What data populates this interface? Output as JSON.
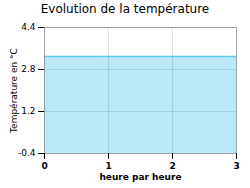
{
  "chart_data": {
    "type": "area",
    "title": "Evolution de la température",
    "xlabel": "heure par heure",
    "ylabel": "Température en °C",
    "x": [
      0,
      3
    ],
    "values": [
      3.3,
      3.3
    ],
    "color": "#66ccee",
    "xlim": [
      0,
      3
    ],
    "ylim": [
      -0.4,
      4.4
    ],
    "xticks": [
      0,
      1,
      2,
      3
    ],
    "yticks": [
      -0.4,
      1.2,
      2.8,
      4.4
    ],
    "grid": true
  }
}
